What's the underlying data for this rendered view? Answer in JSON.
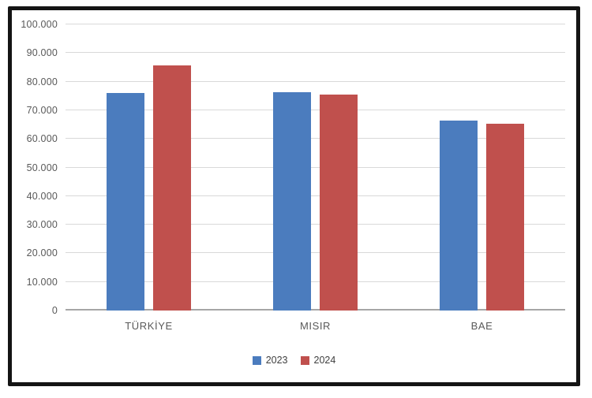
{
  "chart_data": {
    "type": "bar",
    "title": "",
    "categories": [
      "TÜRKİYE",
      "MISIR",
      "BAE"
    ],
    "series": [
      {
        "name": "2023",
        "color": "#4B7CBE",
        "values": [
          76000,
          76300,
          66500
        ]
      },
      {
        "name": "2024",
        "color": "#C0504D",
        "values": [
          85700,
          75500,
          65300
        ]
      }
    ],
    "xlabel": "",
    "ylabel": "",
    "ylim": [
      0,
      100000
    ],
    "ytick_step": 10000,
    "ytick_labels": [
      "0",
      "10.000",
      "20.000",
      "30.000",
      "40.000",
      "50.000",
      "60.000",
      "70.000",
      "80.000",
      "90.000",
      "100.000"
    ],
    "grid": true,
    "legend_position": "bottom",
    "colors": {
      "gridline": "#d9d9d9",
      "axis_line": "#a6a6a6",
      "tick_text": "#595959",
      "category_text": "#595959",
      "legend_text": "#404040",
      "frame_border": "#141414"
    }
  }
}
